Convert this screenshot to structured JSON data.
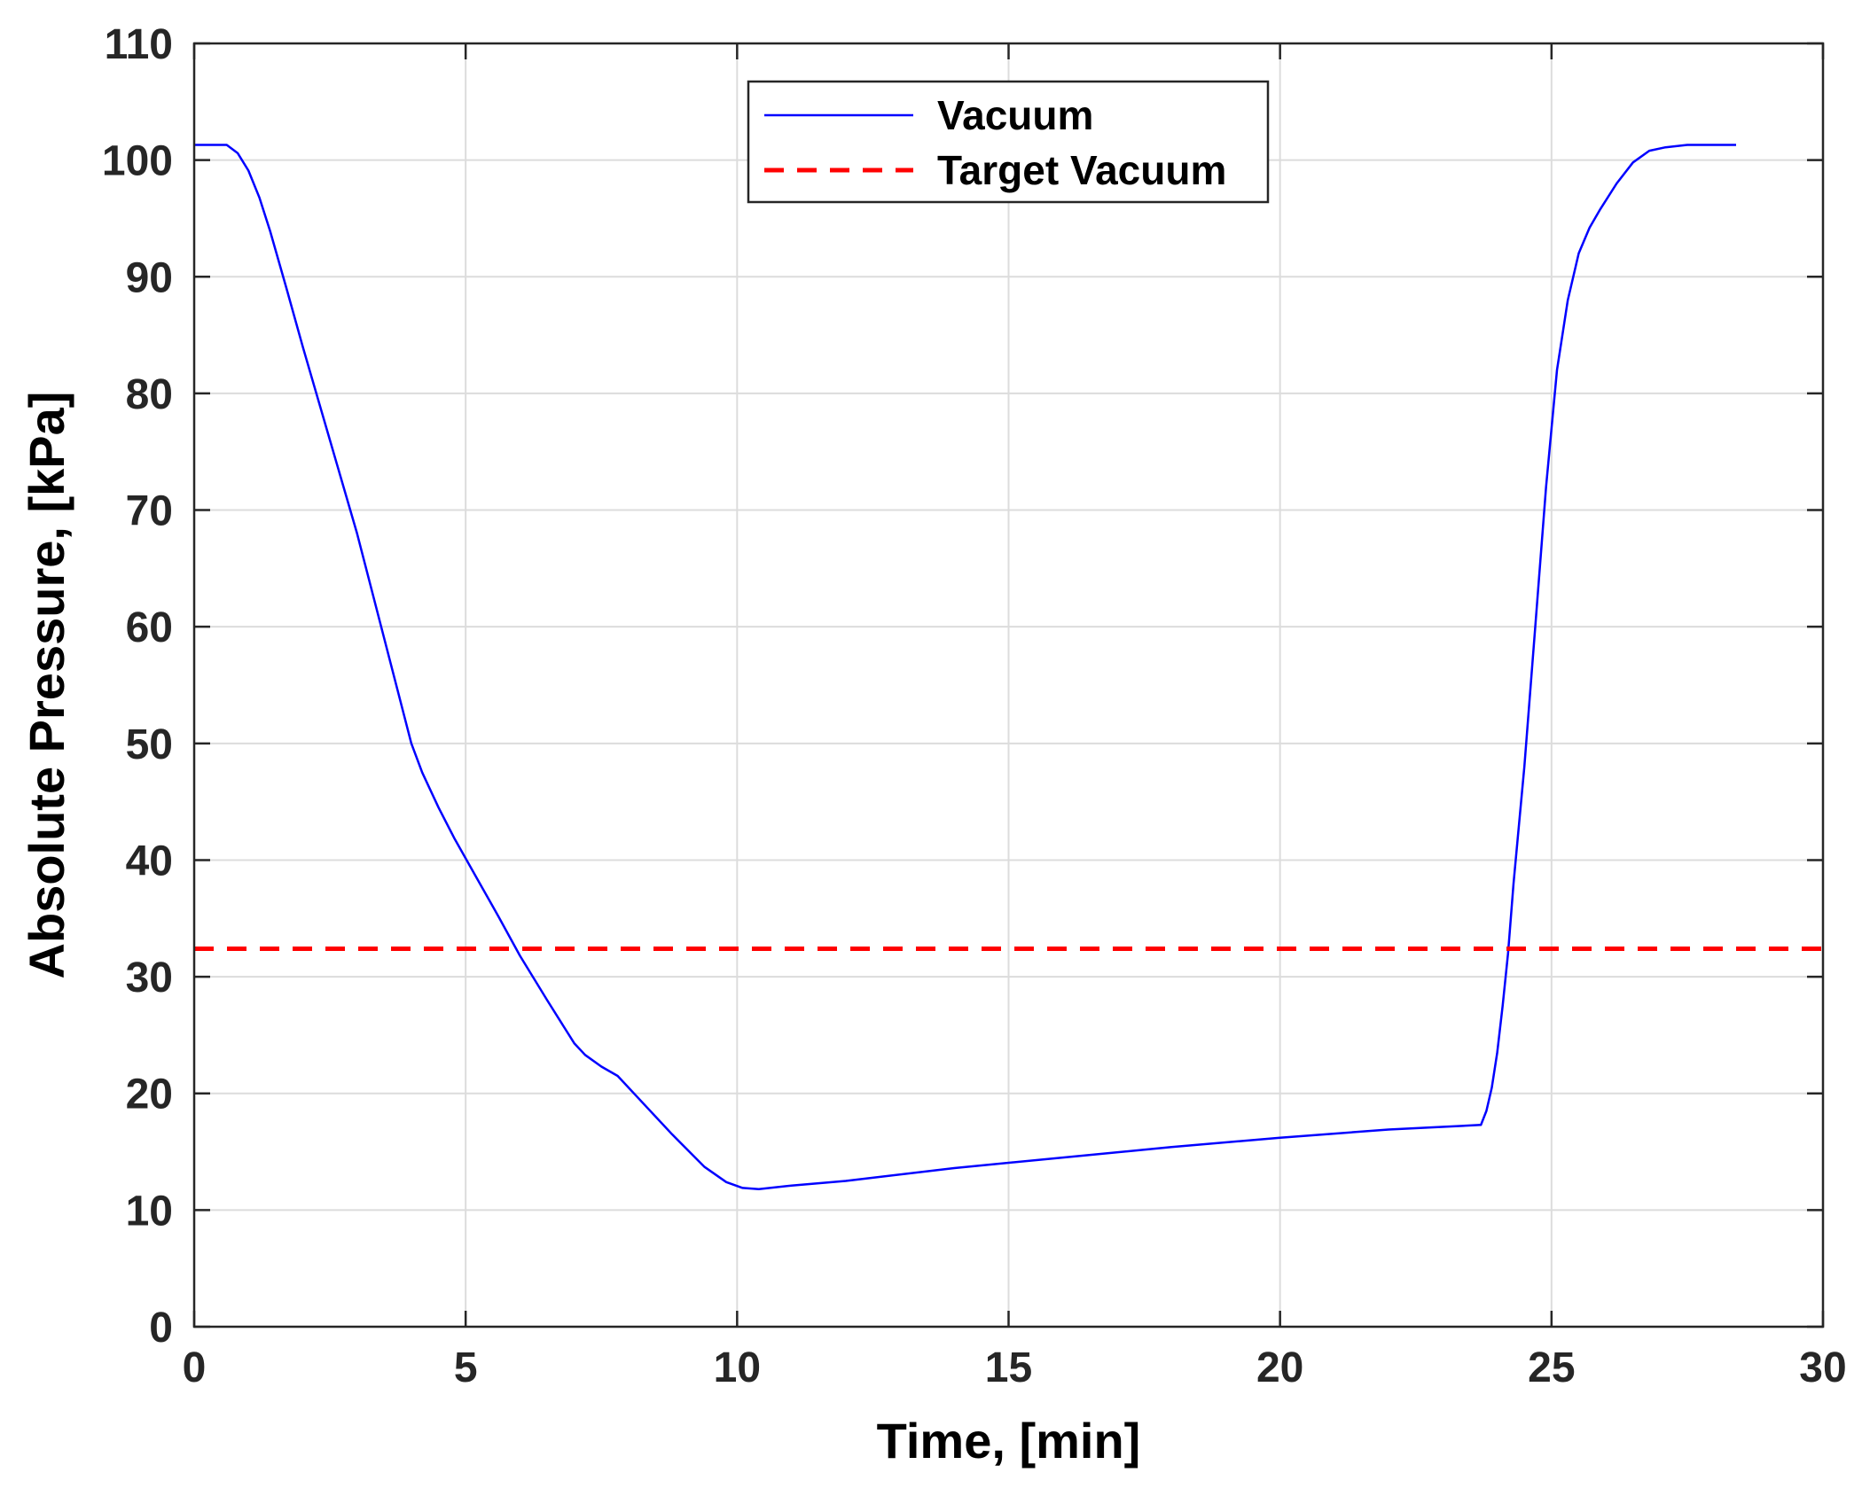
{
  "chart_data": {
    "type": "line",
    "xlabel": "Time, [min]",
    "ylabel": "Absolute Pressure, [kPa]",
    "xlim": [
      0,
      30
    ],
    "ylim": [
      0,
      110
    ],
    "xticks": [
      "0",
      "5",
      "10",
      "15",
      "20",
      "25",
      "30"
    ],
    "yticks": [
      "0",
      "10",
      "20",
      "30",
      "40",
      "50",
      "60",
      "70",
      "80",
      "90",
      "100",
      "110"
    ],
    "grid": true,
    "legend_position": "top-center",
    "series": [
      {
        "name": "Vacuum",
        "color": "#0000ff",
        "style": "solid",
        "x": [
          0,
          0.6,
          0.8,
          1.0,
          1.2,
          1.4,
          1.7,
          2.0,
          2.5,
          3.0,
          3.5,
          4.0,
          4.2,
          4.5,
          4.8,
          5.2,
          5.6,
          6.0,
          6.5,
          7.0,
          7.2,
          7.5,
          7.8,
          8.2,
          8.8,
          9.4,
          9.8,
          10.1,
          10.4,
          11.0,
          12.0,
          14.0,
          16.0,
          18.0,
          20.0,
          22.0,
          23.7,
          23.8,
          23.9,
          24.0,
          24.1,
          24.2,
          24.3,
          24.5,
          24.7,
          24.9,
          25.1,
          25.3,
          25.5,
          25.7,
          25.9,
          26.2,
          26.5,
          26.8,
          27.1,
          27.5,
          28.0,
          28.4
        ],
        "y": [
          101.3,
          101.3,
          100.6,
          99.1,
          96.8,
          93.9,
          89.0,
          84.0,
          76.0,
          68.0,
          59.0,
          50.0,
          47.5,
          44.5,
          41.8,
          38.5,
          35.2,
          31.8,
          28.0,
          24.3,
          23.3,
          22.3,
          21.5,
          19.5,
          16.5,
          13.7,
          12.4,
          11.9,
          11.8,
          12.1,
          12.5,
          13.6,
          14.5,
          15.4,
          16.2,
          16.9,
          17.3,
          18.5,
          20.5,
          23.5,
          27.5,
          32.0,
          38.0,
          48.0,
          60.0,
          72.0,
          82.0,
          88.0,
          92.0,
          94.2,
          95.8,
          98.0,
          99.8,
          100.8,
          101.1,
          101.3,
          101.3,
          101.3
        ]
      },
      {
        "name": "Target Vacuum",
        "color": "#ff0000",
        "style": "dashed",
        "x": [
          0,
          30
        ],
        "y": [
          32.4,
          32.4
        ]
      }
    ]
  }
}
